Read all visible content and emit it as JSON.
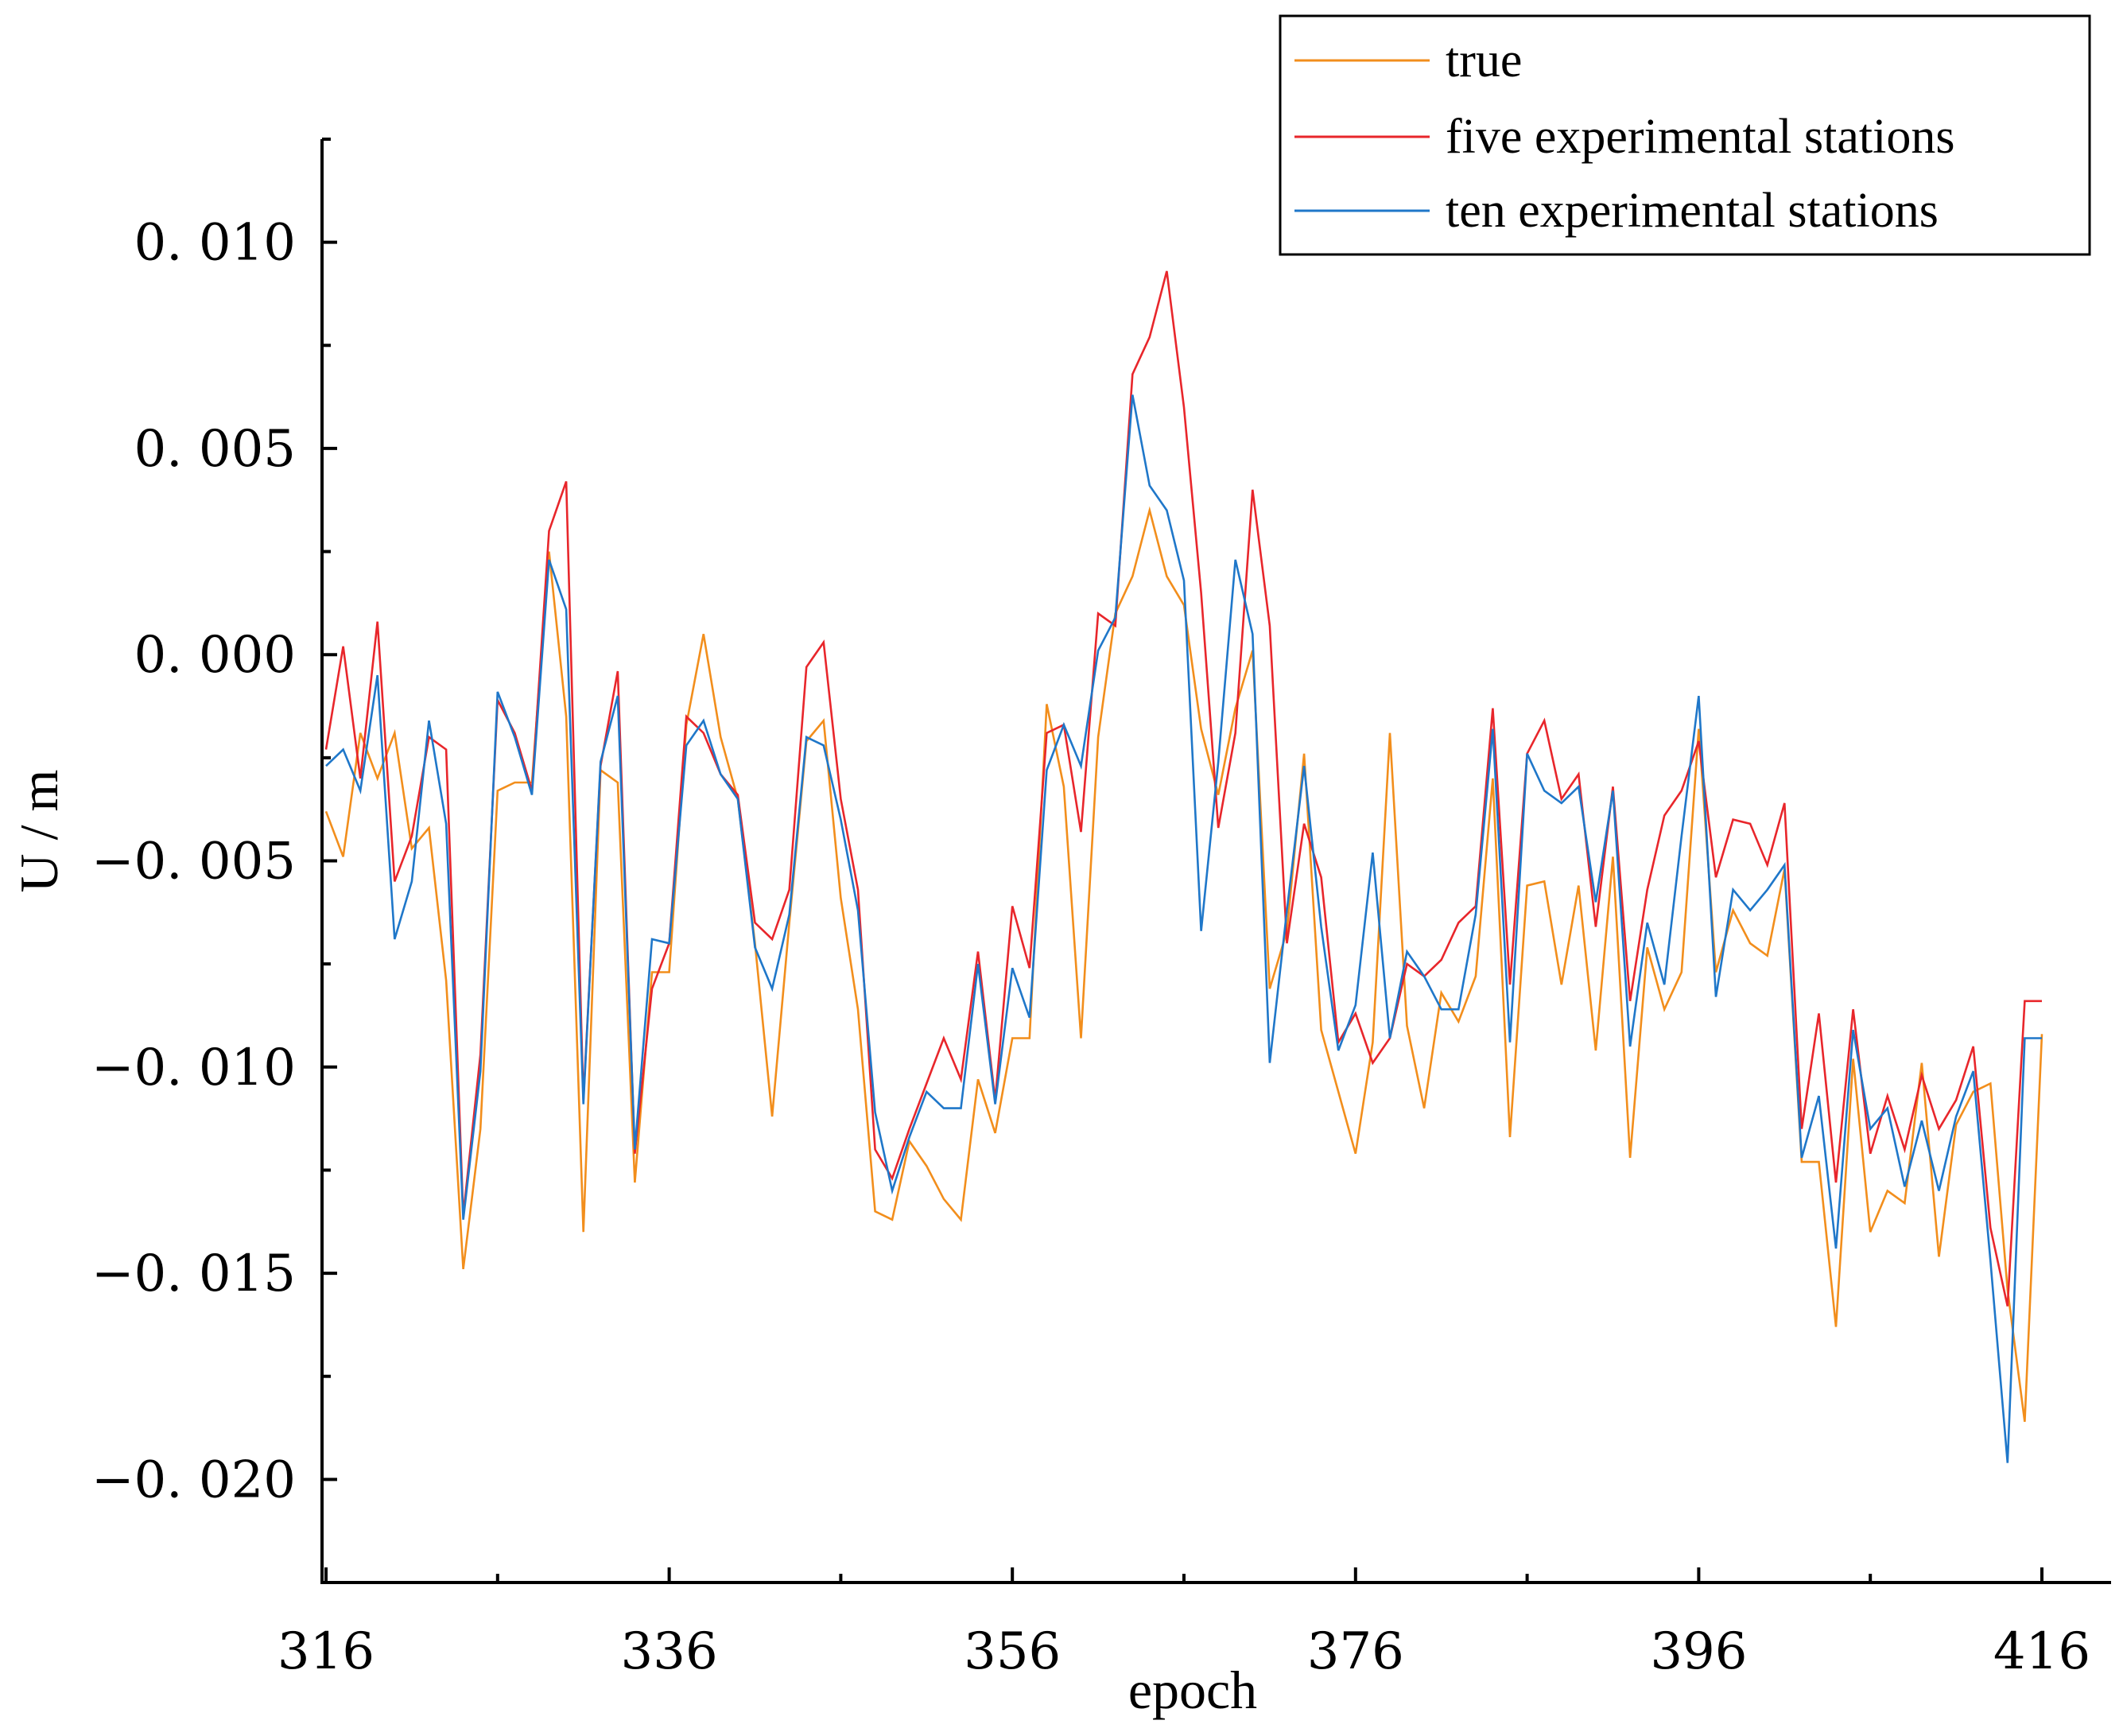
{
  "chart_data": {
    "type": "line",
    "title": "",
    "xlabel": "epoch",
    "ylabel": "U / m",
    "xlim": [
      316,
      417
    ],
    "ylim": [
      -0.0225,
      0.0125
    ],
    "xticks": [
      316,
      336,
      356,
      376,
      396,
      416
    ],
    "xtick_labels": [
      "316",
      "336",
      "356",
      "376",
      "396",
      "416"
    ],
    "yticks": [
      0.01,
      0.005,
      0.0,
      -0.005,
      -0.01,
      -0.015,
      -0.02
    ],
    "ytick_labels": [
      "0. 010",
      "0. 005",
      "0. 000",
      "−0. 005",
      "−0. 010",
      "−0. 015",
      "−0. 020"
    ],
    "legend_position": "top-right",
    "grid": false,
    "x": [
      316,
      317,
      318,
      319,
      320,
      321,
      322,
      323,
      324,
      325,
      326,
      327,
      328,
      329,
      330,
      331,
      332,
      333,
      334,
      335,
      336,
      337,
      338,
      339,
      340,
      341,
      342,
      343,
      344,
      345,
      346,
      347,
      348,
      349,
      350,
      351,
      352,
      353,
      354,
      355,
      356,
      357,
      358,
      359,
      360,
      361,
      362,
      363,
      364,
      365,
      366,
      367,
      368,
      369,
      370,
      371,
      372,
      373,
      374,
      375,
      376,
      377,
      378,
      379,
      380,
      381,
      382,
      383,
      384,
      385,
      386,
      387,
      388,
      389,
      390,
      391,
      392,
      393,
      394,
      395,
      396,
      397,
      398,
      399,
      400,
      401,
      402,
      403,
      404,
      405,
      406,
      407,
      408,
      409,
      410,
      411,
      412,
      413,
      414,
      415,
      416
    ],
    "series": [
      {
        "name": "true",
        "color": "#f28e1c",
        "values": [
          -0.0038,
          -0.0049,
          -0.0019,
          -0.003,
          -0.0019,
          -0.0047,
          -0.0042,
          -0.0079,
          -0.0149,
          -0.0115,
          -0.0033,
          -0.0031,
          -0.0031,
          0.0025,
          -0.0015,
          -0.014,
          -0.0028,
          -0.0031,
          -0.0128,
          -0.0077,
          -0.0077,
          -0.0017,
          0.0005,
          -0.002,
          -0.0035,
          -0.007,
          -0.0112,
          -0.0065,
          -0.0021,
          -0.0016,
          -0.0059,
          -0.0086,
          -0.0135,
          -0.0137,
          -0.0118,
          -0.0124,
          -0.0132,
          -0.0137,
          -0.0103,
          -0.0116,
          -0.0093,
          -0.0093,
          -0.0012,
          -0.0032,
          -0.0093,
          -0.002,
          0.001,
          0.0019,
          0.0035,
          0.0019,
          0.0012,
          -0.0018,
          -0.0034,
          -0.0013,
          0.0001,
          -0.0081,
          -0.0067,
          -0.0024,
          -0.0091,
          -0.0106,
          -0.0121,
          -0.0094,
          -0.0019,
          -0.009,
          -0.011,
          -0.0082,
          -0.0089,
          -0.0078,
          -0.003,
          -0.0117,
          -0.0056,
          -0.0055,
          -0.008,
          -0.0056,
          -0.0096,
          -0.0049,
          -0.0122,
          -0.0071,
          -0.0086,
          -0.0077,
          -0.0018,
          -0.0077,
          -0.0062,
          -0.007,
          -0.0073,
          -0.0052,
          -0.0123,
          -0.0123,
          -0.0163,
          -0.0098,
          -0.014,
          -0.013,
          -0.0133,
          -0.0099,
          -0.0146,
          -0.0114,
          -0.0106,
          -0.0104,
          -0.0154,
          -0.0186,
          -0.0092
        ]
      },
      {
        "name": "five experimental stations",
        "color": "#e8262b",
        "values": [
          -0.0023,
          0.0002,
          -0.003,
          0.0008,
          -0.0055,
          -0.0044,
          -0.002,
          -0.0023,
          -0.0136,
          -0.0097,
          -0.0011,
          -0.0019,
          -0.0033,
          0.003,
          0.0042,
          -0.0108,
          -0.0027,
          -0.0004,
          -0.0121,
          -0.0081,
          -0.007,
          -0.0015,
          -0.0019,
          -0.0029,
          -0.0034,
          -0.0065,
          -0.0069,
          -0.0057,
          -0.0003,
          0.0003,
          -0.0035,
          -0.0057,
          -0.012,
          -0.0127,
          -0.0115,
          -0.0104,
          -0.0093,
          -0.0103,
          -0.0072,
          -0.0108,
          -0.0061,
          -0.0076,
          -0.0019,
          -0.0017,
          -0.0043,
          0.001,
          0.0007,
          0.0068,
          0.0077,
          0.0093,
          0.006,
          0.0015,
          -0.0042,
          -0.0019,
          0.004,
          0.0007,
          -0.007,
          -0.0041,
          -0.0054,
          -0.0094,
          -0.0087,
          -0.0099,
          -0.0093,
          -0.0075,
          -0.0078,
          -0.0074,
          -0.0065,
          -0.0061,
          -0.0013,
          -0.008,
          -0.0024,
          -0.0016,
          -0.0035,
          -0.0029,
          -0.0066,
          -0.0032,
          -0.0084,
          -0.0057,
          -0.0039,
          -0.0033,
          -0.0021,
          -0.0054,
          -0.004,
          -0.0041,
          -0.0051,
          -0.0036,
          -0.0115,
          -0.0087,
          -0.0128,
          -0.0086,
          -0.0121,
          -0.0107,
          -0.012,
          -0.0102,
          -0.0115,
          -0.0108,
          -0.0095,
          -0.0139,
          -0.0158,
          -0.0084,
          -0.0084
        ]
      },
      {
        "name": "ten experimental stations",
        "color": "#1f77c9",
        "values": [
          -0.0027,
          -0.0023,
          -0.0033,
          -0.0005,
          -0.0069,
          -0.0055,
          -0.0016,
          -0.0041,
          -0.0137,
          -0.0101,
          -0.0009,
          -0.002,
          -0.0034,
          0.0023,
          0.0011,
          -0.0109,
          -0.0026,
          -0.001,
          -0.012,
          -0.0069,
          -0.007,
          -0.0022,
          -0.0016,
          -0.0029,
          -0.0035,
          -0.0071,
          -0.0081,
          -0.0063,
          -0.002,
          -0.0022,
          -0.004,
          -0.0062,
          -0.0111,
          -0.013,
          -0.0117,
          -0.0106,
          -0.011,
          -0.011,
          -0.0075,
          -0.0109,
          -0.0076,
          -0.0088,
          -0.0028,
          -0.0017,
          -0.0027,
          0.0001,
          0.0009,
          0.0063,
          0.0041,
          0.0035,
          0.0018,
          -0.0067,
          -0.0026,
          0.0023,
          0.0005,
          -0.0099,
          -0.0062,
          -0.0027,
          -0.0066,
          -0.0096,
          -0.0085,
          -0.0048,
          -0.0093,
          -0.0072,
          -0.0078,
          -0.0086,
          -0.0086,
          -0.0063,
          -0.0018,
          -0.0094,
          -0.0024,
          -0.0033,
          -0.0036,
          -0.0032,
          -0.006,
          -0.0033,
          -0.0095,
          -0.0065,
          -0.008,
          -0.0044,
          -0.001,
          -0.0083,
          -0.0057,
          -0.0062,
          -0.0057,
          -0.0051,
          -0.0122,
          -0.0107,
          -0.0144,
          -0.0091,
          -0.0115,
          -0.011,
          -0.0129,
          -0.0113,
          -0.013,
          -0.0112,
          -0.0101,
          -0.0147,
          -0.0196,
          -0.0093,
          -0.0093
        ]
      }
    ]
  }
}
